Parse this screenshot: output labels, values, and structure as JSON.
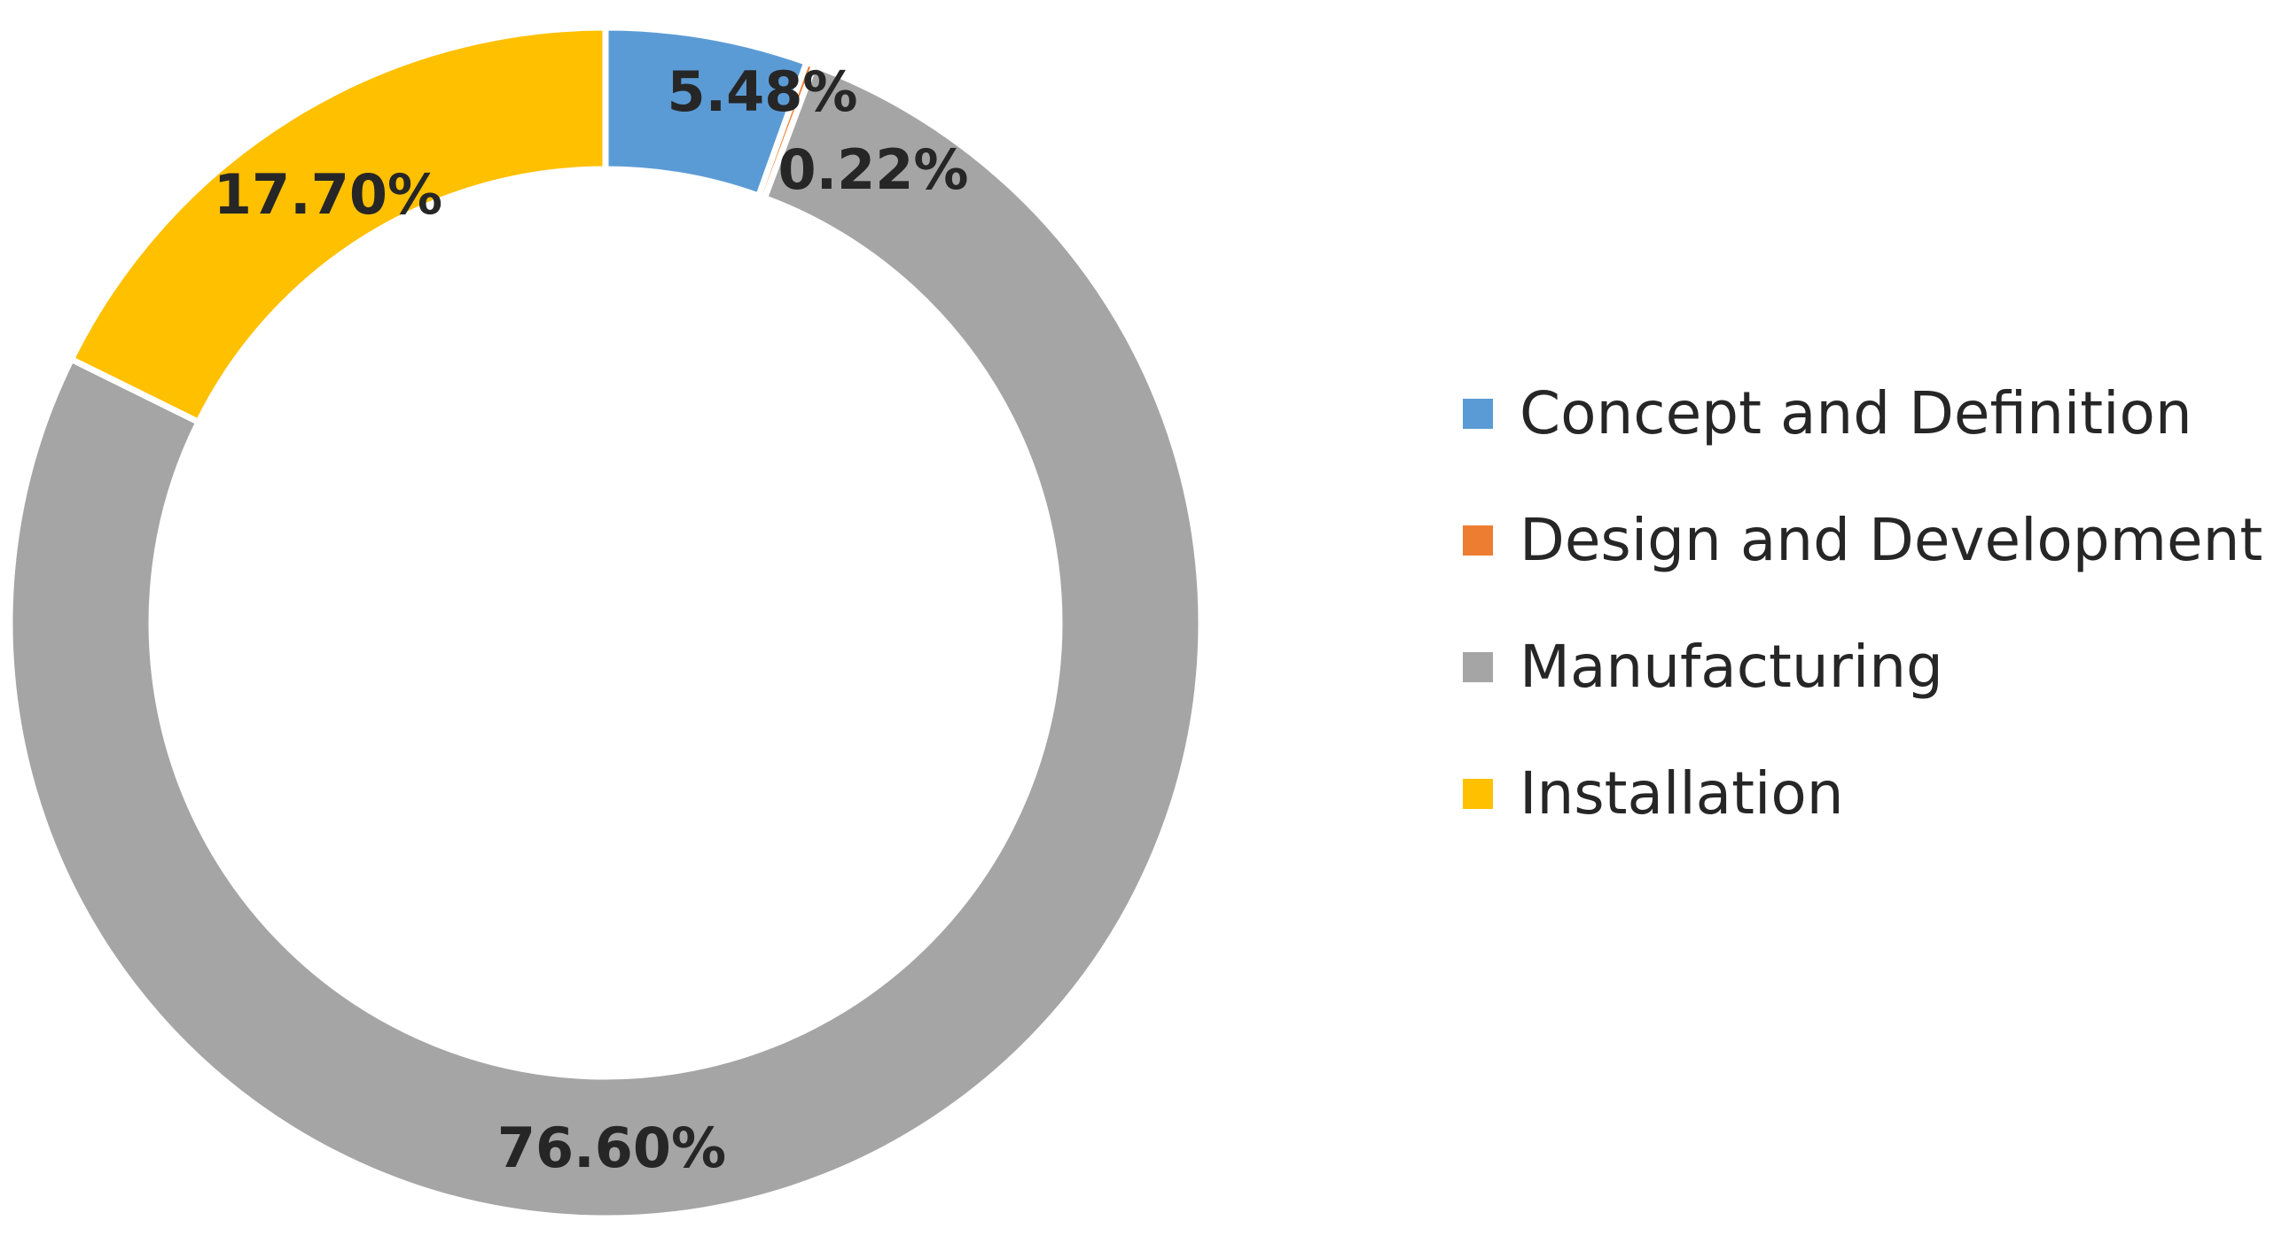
{
  "chart_data": {
    "type": "pie",
    "variant": "doughnut",
    "title": "",
    "categories": [
      "Concept and Definition",
      "Design and Development",
      "Manufacturing",
      "Installation"
    ],
    "values": [
      5.48,
      0.22,
      76.6,
      17.7
    ],
    "data_labels": [
      "5.48%",
      "0.22%",
      "76.60%",
      "17.70%"
    ],
    "colors": [
      "#5B9BD5",
      "#ED7D31",
      "#A5A5A5",
      "#FFC000"
    ],
    "unit": "%",
    "legend_position": "right"
  }
}
